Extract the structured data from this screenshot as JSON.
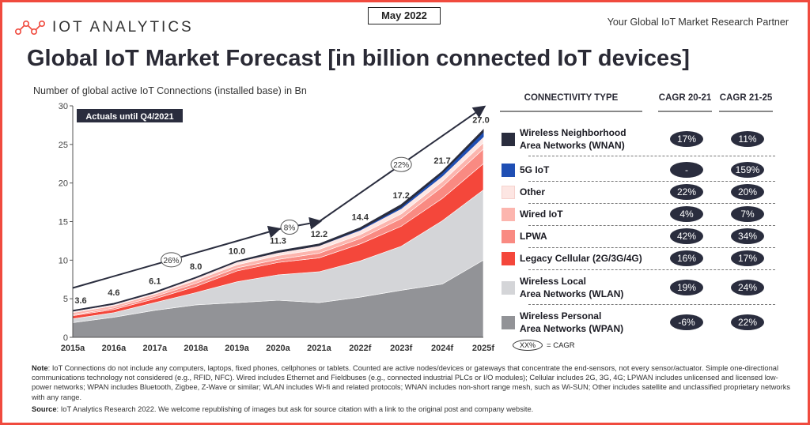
{
  "header": {
    "logo_text": "IOT ANALYTICS",
    "date": "May 2022",
    "tagline": "Your Global IoT Market Research Partner"
  },
  "title": "Global IoT Market Forecast [in billion connected IoT devices]",
  "subtitle": "Number of global active IoT Connections (installed base) in Bn",
  "chart_data": {
    "type": "area",
    "stacked": true,
    "ylim": [
      0,
      30
    ],
    "yticks": [
      "0",
      "5",
      "10",
      "15",
      "20",
      "25",
      "30"
    ],
    "categories": [
      "2015a",
      "2016a",
      "2017a",
      "2018a",
      "2019a",
      "2020a",
      "2021a",
      "2022f",
      "2023f",
      "2024f",
      "2025f"
    ],
    "annotation": "Actuals until Q4/2021",
    "totals": [
      "3.6",
      "4.6",
      "6.1",
      "8.0",
      "10.0",
      "11.3",
      "12.2",
      "14.4",
      "17.2",
      "21.7",
      "27.0"
    ],
    "series": [
      {
        "name": "Wireless Personal Area Networks (WPAN)",
        "color": "#929397",
        "values": [
          1.9,
          2.6,
          3.5,
          4.2,
          4.5,
          4.8,
          4.5,
          5.2,
          6.1,
          6.9,
          10.0
        ]
      },
      {
        "name": "Wireless Local Area Networks (WLAN)",
        "color": "#d4d5d8",
        "values": [
          0.5,
          0.6,
          1.0,
          1.6,
          2.7,
          3.3,
          4.0,
          4.7,
          5.7,
          8.2,
          9.1
        ]
      },
      {
        "name": "Legacy Cellular (2G/3G/4G)",
        "color": "#f4473b",
        "values": [
          0.4,
          0.4,
          0.5,
          0.8,
          1.4,
          1.6,
          1.8,
          2.2,
          2.6,
          2.9,
          3.4
        ]
      },
      {
        "name": "LPWA",
        "color": "#f98a82",
        "values": [
          0.1,
          0.2,
          0.3,
          0.4,
          0.4,
          0.4,
          0.6,
          0.7,
          1.0,
          1.5,
          1.9
        ]
      },
      {
        "name": "Wired IoT",
        "color": "#fcb5ae",
        "values": [
          0.3,
          0.3,
          0.3,
          0.4,
          0.4,
          0.5,
          0.5,
          0.5,
          0.6,
          0.7,
          0.8
        ]
      },
      {
        "name": "Other",
        "color": "#fde6e3",
        "values": [
          0.2,
          0.2,
          0.2,
          0.3,
          0.4,
          0.4,
          0.5,
          0.6,
          0.7,
          0.7,
          0.8
        ]
      },
      {
        "name": "5G IoT",
        "color": "#1f4fb4",
        "values": [
          0,
          0,
          0,
          0,
          0,
          0,
          0,
          0.1,
          0.2,
          0.4,
          0.6
        ]
      },
      {
        "name": "Wireless Neighborhood Area Networks (WNAN)",
        "color": "#2a2d3e",
        "values": [
          0.1,
          0.1,
          0.1,
          0.1,
          0.1,
          0.2,
          0.2,
          0.2,
          0.3,
          0.2,
          0.3
        ]
      }
    ],
    "cagr_arrows": [
      {
        "label": "26%",
        "from": [
          "2015a",
          6.4
        ],
        "to": [
          "2020a",
          14.0
        ]
      },
      {
        "label": "8%",
        "from": [
          "2020a",
          14.0
        ],
        "to": [
          "2021a",
          15.0
        ]
      },
      {
        "label": "22%",
        "from": [
          "2021a",
          15.0
        ],
        "to": [
          "2025f",
          29.8
        ]
      }
    ]
  },
  "table": {
    "headers": [
      "CONNECTIVITY TYPE",
      "CAGR 20-21",
      "CAGR 21-25"
    ],
    "rows": [
      {
        "line1": "Wireless Neighborhood",
        "line2": "Area Networks (WNAN)",
        "color": "#2a2d3e",
        "c1": "17%",
        "c2": "11%"
      },
      {
        "line1": "5G IoT",
        "line2": "",
        "color": "#1f4fb4",
        "c1": "-",
        "c2": "159%"
      },
      {
        "line1": "Other",
        "line2": "",
        "color": "#fde6e3",
        "c1": "22%",
        "c2": "20%"
      },
      {
        "line1": "Wired IoT",
        "line2": "",
        "color": "#fcb5ae",
        "c1": "4%",
        "c2": "7%"
      },
      {
        "line1": "LPWA",
        "line2": "",
        "color": "#f98a82",
        "c1": "42%",
        "c2": "34%"
      },
      {
        "line1": "Legacy Cellular (2G/3G/4G)",
        "line2": "",
        "color": "#f4473b",
        "c1": "16%",
        "c2": "17%"
      },
      {
        "line1": "Wireless Local",
        "line2": "Area Networks (WLAN)",
        "color": "#d4d5d8",
        "c1": "19%",
        "c2": "24%"
      },
      {
        "line1": "Wireless Personal",
        "line2": "Area Networks (WPAN)",
        "color": "#929397",
        "c1": "-6%",
        "c2": "22%"
      }
    ],
    "legend_symbol": "XX%",
    "legend_text": "= CAGR"
  },
  "notes": {
    "note_label": "Note",
    "note_text": ": IoT Connections do not include any computers, laptops, fixed phones, cellphones or tablets. Counted are active nodes/devices or gateways that concentrate the end-sensors, not every sensor/actuator. Simple one-directional communications technology not considered (e.g., RFID, NFC). Wired includes Ethernet and Fieldbuses (e.g., connected industrial PLCs or I/O modules); Cellular includes 2G, 3G, 4G;  LPWAN includes unlicensed and licensed low-power networks; WPAN includes Bluetooth, Zigbee, Z-Wave or similar; WLAN includes Wi-fi and related protocols; WNAN includes non-short range mesh, such as Wi-SUN; Other includes satellite and unclassified proprietary networks with any range.",
    "source_label": "Source",
    "source_text": ": IoT Analytics Research 2022. We welcome republishing of images but ask for source citation with a link to the original post and company website."
  }
}
